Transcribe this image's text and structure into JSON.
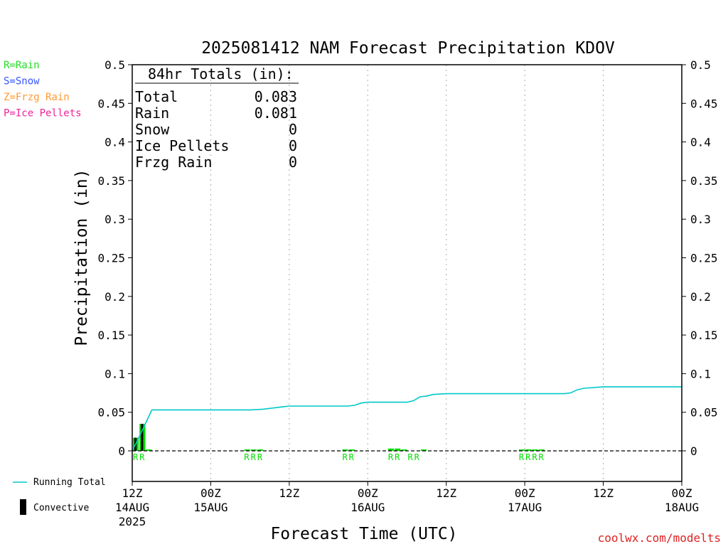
{
  "chart_data": {
    "type": "bar",
    "title": "2025081412 NAM Forecast Precipitation KDOV",
    "xlabel": "Forecast Time (UTC)",
    "ylabel": "Precipitation (in)",
    "ylim": [
      0,
      0.5
    ],
    "xlim_hours": [
      0,
      84
    ],
    "grid": "vertical dotted at 12Z/00Z",
    "y_ticks": [
      "0",
      "0.05",
      "0.1",
      "0.15",
      "0.2",
      "0.25",
      "0.3",
      "0.35",
      "0.4",
      "0.45",
      "0.5"
    ],
    "x_ticks": [
      {
        "hour": 0,
        "label": "12Z",
        "date": "14AUG",
        "year": "2025"
      },
      {
        "hour": 12,
        "label": "00Z",
        "date": "15AUG",
        "year": ""
      },
      {
        "hour": 24,
        "label": "12Z",
        "date": "",
        "year": ""
      },
      {
        "hour": 36,
        "label": "00Z",
        "date": "16AUG",
        "year": ""
      },
      {
        "hour": 48,
        "label": "12Z",
        "date": "",
        "year": ""
      },
      {
        "hour": 60,
        "label": "00Z",
        "date": "17AUG",
        "year": ""
      },
      {
        "hour": 72,
        "label": "12Z",
        "date": "",
        "year": ""
      },
      {
        "hour": 84,
        "label": "00Z",
        "date": "18AUG",
        "year": ""
      }
    ],
    "totals": {
      "heading": "84hr Totals (in):",
      "rows": [
        {
          "label": "Total",
          "value": "0.083"
        },
        {
          "label": "Rain",
          "value": "0.081"
        },
        {
          "label": "Snow",
          "value": "0"
        },
        {
          "label": "Ice Pellets",
          "value": "0"
        },
        {
          "label": "Frzg Rain",
          "value": "0"
        }
      ]
    },
    "precip_types": [
      {
        "text": "R=Rain",
        "color": "#22dd22"
      },
      {
        "text": "S=Snow",
        "color": "#3355ff"
      },
      {
        "text": "Z=Frzg Rain",
        "color": "#ff9933"
      },
      {
        "text": "P=Ice Pellets",
        "color": "#ee2299"
      }
    ],
    "series": [
      {
        "name": "Running Total",
        "color": "#00c8c8",
        "type": "line",
        "x": [
          0,
          1,
          2,
          3,
          5,
          10,
          15,
          18,
          20,
          21,
          22,
          23,
          24,
          27,
          30,
          33,
          34,
          35,
          36,
          39,
          42,
          43,
          44,
          45,
          46,
          48,
          51,
          54,
          57,
          60,
          63,
          66,
          67,
          68,
          69,
          72,
          75,
          78,
          81,
          84
        ],
        "y": [
          0,
          0.017,
          0.035,
          0.053,
          0.053,
          0.053,
          0.053,
          0.053,
          0.054,
          0.055,
          0.056,
          0.057,
          0.058,
          0.058,
          0.058,
          0.058,
          0.059,
          0.062,
          0.063,
          0.063,
          0.063,
          0.065,
          0.07,
          0.071,
          0.073,
          0.074,
          0.074,
          0.074,
          0.074,
          0.074,
          0.074,
          0.074,
          0.075,
          0.079,
          0.081,
          0.083,
          0.083,
          0.083,
          0.083,
          0.083
        ]
      },
      {
        "name": "Convective",
        "color": "#000000",
        "type": "bar",
        "x": [
          1,
          2
        ],
        "values": [
          0.017,
          0.035
        ]
      },
      {
        "name": "Rain",
        "color": "#00dd00",
        "type": "bar",
        "x": [
          1,
          2,
          3,
          18,
          19,
          20,
          33,
          34,
          40,
          41,
          42,
          45,
          60,
          61,
          62,
          63
        ],
        "values": [
          0.017,
          0.035,
          0.0,
          0.0015,
          0.0015,
          0.0015,
          0.0015,
          0.0015,
          0.003,
          0.003,
          0.001,
          0.001,
          0.0015,
          0.002,
          0.0015,
          0.0015
        ]
      }
    ],
    "ptype_labels": [
      {
        "x": 1,
        "text": "R"
      },
      {
        "x": 2,
        "text": "R"
      },
      {
        "x": 18,
        "text": "R"
      },
      {
        "x": 19,
        "text": "R"
      },
      {
        "x": 20,
        "text": "R"
      },
      {
        "x": 33,
        "text": "R"
      },
      {
        "x": 34,
        "text": "R"
      },
      {
        "x": 40,
        "text": "R"
      },
      {
        "x": 41,
        "text": "R"
      },
      {
        "x": 43,
        "text": "R"
      },
      {
        "x": 44,
        "text": "R"
      },
      {
        "x": 60,
        "text": "R"
      },
      {
        "x": 61,
        "text": "R"
      },
      {
        "x": 62,
        "text": "R"
      },
      {
        "x": 63,
        "text": "R"
      }
    ],
    "legend": [
      {
        "label": "Running Total",
        "kind": "line",
        "color": "#00c8c8"
      },
      {
        "label": "Convective",
        "kind": "bar",
        "color": "#000000"
      }
    ],
    "credit": "coolwx.com/modelts",
    "credit_color": "#dd2222"
  }
}
